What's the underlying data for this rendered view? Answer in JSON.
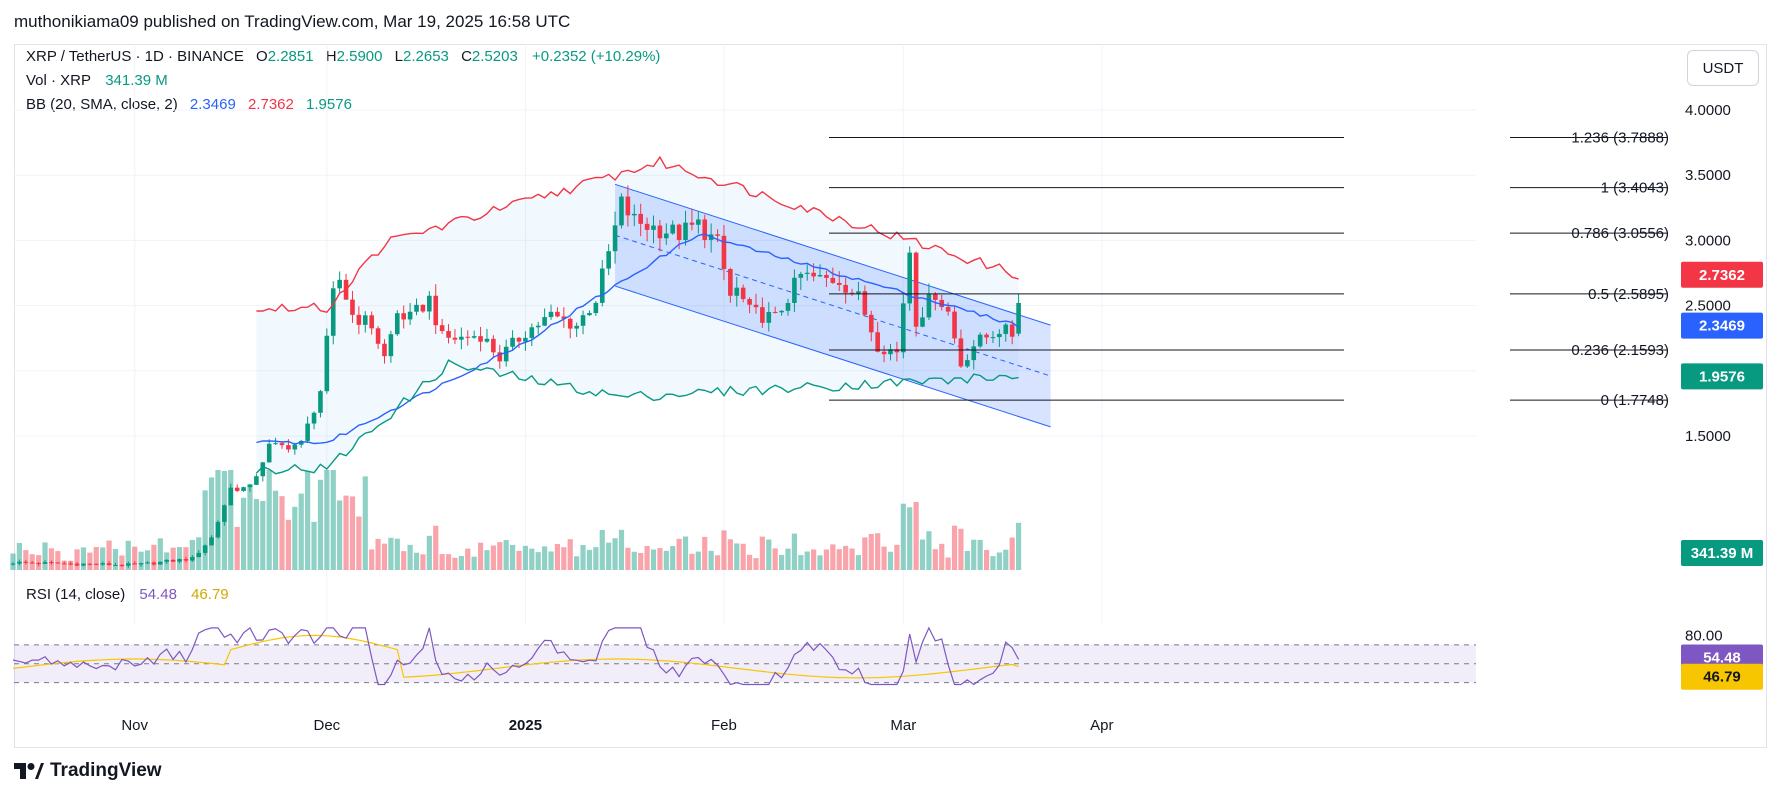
{
  "header": "muthonikiama09 published on TradingView.com, Mar 19, 2025 16:58 UTC",
  "legend": {
    "symbol": "XRP / TetherUS · 1D · BINANCE",
    "ohlc": {
      "o_label": "O",
      "o": "2.2851",
      "h_label": "H",
      "h": "2.5900",
      "l_label": "L",
      "l": "2.2653",
      "c_label": "C",
      "c": "2.5203",
      "change": "+0.2352 (+10.29%)"
    },
    "volume_label": "Vol · XRP",
    "volume_value": "341.39 M",
    "bb_label": "BB (20, SMA, close, 2)",
    "bb_basis": "2.3469",
    "bb_upper": "2.7362",
    "bb_lower": "1.9576",
    "rsi_label": "RSI (14, close)",
    "rsi_value": "54.48",
    "rsi_ma": "46.79"
  },
  "currency_button": "USDT",
  "price_badges": {
    "upper": "2.7362",
    "basis": "2.3469",
    "lower": "1.9576",
    "volume": "341.39 M",
    "rsi": "54.48",
    "rsi_ma": "46.79"
  },
  "fib_levels": [
    {
      "label": "1.236 (3.7888)",
      "price": 3.7888
    },
    {
      "label": "1 (3.4043)",
      "price": 3.4043
    },
    {
      "label": "0.786 (3.0556)",
      "price": 3.0556
    },
    {
      "label": "0.5 (2.5895)",
      "price": 2.5895
    },
    {
      "label": "0.236 (2.1593)",
      "price": 2.1593
    },
    {
      "label": "0 (1.7748)",
      "price": 1.7748
    }
  ],
  "x_labels": [
    "Nov",
    "Dec",
    "2025",
    "Feb",
    "Mar",
    "Apr"
  ],
  "rsi_ticks": [
    "80.00"
  ],
  "brand": "TradingView",
  "colors": {
    "up": "#089981",
    "down": "#f23645",
    "basis": "#2962ff",
    "upper": "#f23645",
    "lower": "#089981",
    "rsi": "#7e57c2",
    "rsi_ma": "#f7c600",
    "channel": "#2962ff"
  },
  "chart_data": {
    "type": "candlestick",
    "title": "XRP / TetherUS · 1D · BINANCE",
    "y_ticks": [
      1.5,
      2.0,
      2.5,
      3.0,
      3.5,
      4.0
    ],
    "y_tick_labels": [
      "1.5000",
      "2.0000",
      "2.5000",
      "3.0000",
      "3.5000",
      "4.0000"
    ],
    "ylim": [
      1.25,
      4.0
    ],
    "x_range": [
      "Oct 13, 2024",
      "Apr 24, 2025"
    ],
    "series": [
      {
        "name": "XRP / TetherUS",
        "type": "candlestick",
        "close_anchors": [
          [
            "2024-10-13",
            0.53
          ],
          [
            "2024-11-01",
            0.51
          ],
          [
            "2024-11-10",
            0.56
          ],
          [
            "2024-11-13",
            0.72
          ],
          [
            "2024-11-16",
            1.1
          ],
          [
            "2024-11-19",
            1.1
          ],
          [
            "2024-11-22",
            1.42
          ],
          [
            "2024-11-24",
            1.42
          ],
          [
            "2024-11-27",
            1.44
          ],
          [
            "2024-11-30",
            1.85
          ],
          [
            "2024-12-02",
            2.58
          ],
          [
            "2024-12-03",
            2.7
          ],
          [
            "2024-12-05",
            2.43
          ],
          [
            "2024-12-08",
            2.35
          ],
          [
            "2024-12-10",
            2.1
          ],
          [
            "2024-12-12",
            2.44
          ],
          [
            "2024-12-14",
            2.4
          ],
          [
            "2024-12-17",
            2.55
          ],
          [
            "2024-12-19",
            2.25
          ],
          [
            "2024-12-22",
            2.25
          ],
          [
            "2024-12-25",
            2.28
          ],
          [
            "2024-12-28",
            2.1
          ],
          [
            "2025-01-01",
            2.3
          ],
          [
            "2025-01-05",
            2.42
          ],
          [
            "2025-01-09",
            2.35
          ],
          [
            "2025-01-12",
            2.55
          ],
          [
            "2025-01-14",
            2.9
          ],
          [
            "2025-01-16",
            3.28
          ],
          [
            "2025-01-18",
            3.15
          ],
          [
            "2025-01-21",
            3.1
          ],
          [
            "2025-01-25",
            3.05
          ],
          [
            "2025-01-28",
            3.12
          ],
          [
            "2025-01-31",
            2.97
          ],
          [
            "2025-02-02",
            2.57
          ],
          [
            "2025-02-03",
            2.62
          ],
          [
            "2025-02-05",
            2.45
          ],
          [
            "2025-02-09",
            2.4
          ],
          [
            "2025-02-13",
            2.73
          ],
          [
            "2025-02-16",
            2.7
          ],
          [
            "2025-02-19",
            2.7
          ],
          [
            "2025-02-22",
            2.56
          ],
          [
            "2025-02-25",
            2.2
          ],
          [
            "2025-02-28",
            2.14
          ],
          [
            "2025-03-02",
            2.93
          ],
          [
            "2025-03-03",
            2.39
          ],
          [
            "2025-03-06",
            2.6
          ],
          [
            "2025-03-08",
            2.45
          ],
          [
            "2025-03-10",
            2.05
          ],
          [
            "2025-03-12",
            2.2
          ],
          [
            "2025-03-16",
            2.32
          ],
          [
            "2025-03-18",
            2.28
          ],
          [
            "2025-03-19",
            2.52
          ]
        ]
      },
      {
        "name": "BB Basis",
        "values_anchor": [
          [
            "2024-12-01",
            1.45
          ],
          [
            "2025-01-01",
            2.22
          ],
          [
            "2025-01-28",
            3.05
          ],
          [
            "2025-03-19",
            2.3469
          ]
        ]
      },
      {
        "name": "BB Upper",
        "values_anchor": [
          [
            "2024-12-01",
            2.48
          ],
          [
            "2024-12-10",
            2.98
          ],
          [
            "2025-01-22",
            3.6
          ],
          [
            "2025-03-19",
            2.7362
          ]
        ]
      },
      {
        "name": "BB Lower",
        "values_anchor": [
          [
            "2024-12-01",
            1.25
          ],
          [
            "2024-12-20",
            2.05
          ],
          [
            "2025-01-16",
            1.8
          ],
          [
            "2025-03-19",
            1.9576
          ]
        ]
      }
    ],
    "channel": {
      "upper_start": [
        "2025-01-15",
        3.43
      ],
      "upper_end": [
        "2025-03-24",
        2.35
      ],
      "lower_start": [
        "2025-01-15",
        2.65
      ],
      "lower_end": [
        "2025-03-24",
        1.57
      ]
    },
    "volume": {
      "name": "Vol · XRP",
      "last": "341.39 M"
    },
    "rsi": {
      "name": "RSI (14, close)",
      "last": 54.48,
      "ma_last": 46.79,
      "bands": [
        70,
        50,
        30
      ],
      "tick_labels": [
        "80.00"
      ]
    }
  }
}
